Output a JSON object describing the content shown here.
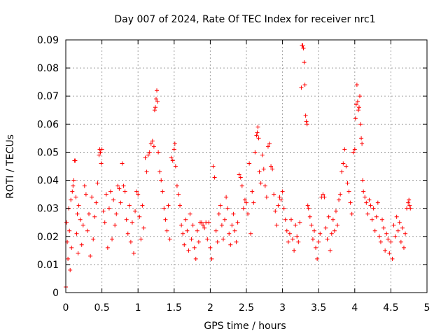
{
  "chart_data": {
    "type": "scatter",
    "title": "Day 007 of 2024, Rate Of TEC Index for receiver nrc1",
    "xlabel": "GPS time / hours",
    "ylabel": "ROTI / TECUs",
    "xlim": [
      0,
      5
    ],
    "ylim": [
      0,
      0.09
    ],
    "x_ticks": [
      0,
      0.5,
      1,
      1.5,
      2,
      2.5,
      3,
      3.5,
      4,
      4.5,
      5
    ],
    "x_tick_labels": [
      "0",
      "0.5",
      "1",
      "1.5",
      "2",
      "2.5",
      "3",
      "3.5",
      "4",
      "4.5",
      "5"
    ],
    "y_ticks": [
      0,
      0.01,
      0.02,
      0.03,
      0.04,
      0.05,
      0.06,
      0.07,
      0.08,
      0.09
    ],
    "y_tick_labels": [
      "0",
      "0.01",
      "0.02",
      "0.03",
      "0.04",
      "0.05",
      "0.06",
      "0.07",
      "0.08",
      "0.09"
    ],
    "grid": true,
    "marker": "+",
    "color": "#ff0000",
    "series": [
      {
        "name": "ROTI",
        "points": [
          [
            0.0,
            0.002
          ],
          [
            0.01,
            0.025
          ],
          [
            0.02,
            0.018
          ],
          [
            0.03,
            0.012
          ],
          [
            0.04,
            0.03
          ],
          [
            0.05,
            0.022
          ],
          [
            0.06,
            0.008
          ],
          [
            0.07,
            0.033
          ],
          [
            0.08,
            0.016
          ],
          [
            0.09,
            0.036
          ],
          [
            0.1,
            0.038
          ],
          [
            0.11,
            0.04
          ],
          [
            0.12,
            0.047
          ],
          [
            0.13,
            0.047
          ],
          [
            0.14,
            0.034
          ],
          [
            0.15,
            0.021
          ],
          [
            0.16,
            0.028
          ],
          [
            0.17,
            0.014
          ],
          [
            0.18,
            0.031
          ],
          [
            0.2,
            0.026
          ],
          [
            0.22,
            0.017
          ],
          [
            0.24,
            0.024
          ],
          [
            0.26,
            0.038
          ],
          [
            0.28,
            0.035
          ],
          [
            0.3,
            0.022
          ],
          [
            0.32,
            0.028
          ],
          [
            0.34,
            0.013
          ],
          [
            0.36,
            0.034
          ],
          [
            0.38,
            0.019
          ],
          [
            0.4,
            0.027
          ],
          [
            0.42,
            0.032
          ],
          [
            0.44,
            0.039
          ],
          [
            0.46,
            0.049
          ],
          [
            0.47,
            0.051
          ],
          [
            0.48,
            0.05
          ],
          [
            0.49,
            0.046
          ],
          [
            0.5,
            0.051
          ],
          [
            0.52,
            0.029
          ],
          [
            0.54,
            0.025
          ],
          [
            0.56,
            0.035
          ],
          [
            0.58,
            0.016
          ],
          [
            0.6,
            0.03
          ],
          [
            0.62,
            0.036
          ],
          [
            0.64,
            0.019
          ],
          [
            0.66,
            0.033
          ],
          [
            0.68,
            0.024
          ],
          [
            0.7,
            0.028
          ],
          [
            0.72,
            0.038
          ],
          [
            0.74,
            0.037
          ],
          [
            0.76,
            0.032
          ],
          [
            0.78,
            0.046
          ],
          [
            0.8,
            0.038
          ],
          [
            0.82,
            0.036
          ],
          [
            0.84,
            0.026
          ],
          [
            0.86,
            0.021
          ],
          [
            0.88,
            0.031
          ],
          [
            0.9,
            0.018
          ],
          [
            0.92,
            0.025
          ],
          [
            0.94,
            0.014
          ],
          [
            0.96,
            0.029
          ],
          [
            0.98,
            0.036
          ],
          [
            1.0,
            0.035
          ],
          [
            1.02,
            0.027
          ],
          [
            1.04,
            0.019
          ],
          [
            1.06,
            0.031
          ],
          [
            1.08,
            0.023
          ],
          [
            1.1,
            0.048
          ],
          [
            1.12,
            0.043
          ],
          [
            1.14,
            0.049
          ],
          [
            1.16,
            0.05
          ],
          [
            1.18,
            0.053
          ],
          [
            1.2,
            0.054
          ],
          [
            1.22,
            0.052
          ],
          [
            1.23,
            0.065
          ],
          [
            1.24,
            0.066
          ],
          [
            1.25,
            0.069
          ],
          [
            1.26,
            0.072
          ],
          [
            1.27,
            0.068
          ],
          [
            1.28,
            0.05
          ],
          [
            1.3,
            0.043
          ],
          [
            1.32,
            0.04
          ],
          [
            1.34,
            0.036
          ],
          [
            1.36,
            0.03
          ],
          [
            1.38,
            0.026
          ],
          [
            1.4,
            0.022
          ],
          [
            1.42,
            0.031
          ],
          [
            1.44,
            0.019
          ],
          [
            1.46,
            0.048
          ],
          [
            1.48,
            0.047
          ],
          [
            1.5,
            0.051
          ],
          [
            1.51,
            0.053
          ],
          [
            1.52,
            0.045
          ],
          [
            1.54,
            0.038
          ],
          [
            1.56,
            0.035
          ],
          [
            1.58,
            0.031
          ],
          [
            1.6,
            0.024
          ],
          [
            1.62,
            0.021
          ],
          [
            1.64,
            0.017
          ],
          [
            1.66,
            0.026
          ],
          [
            1.68,
            0.022
          ],
          [
            1.7,
            0.015
          ],
          [
            1.72,
            0.028
          ],
          [
            1.74,
            0.019
          ],
          [
            1.76,
            0.024
          ],
          [
            1.78,
            0.016
          ],
          [
            1.8,
            0.012
          ],
          [
            1.82,
            0.022
          ],
          [
            1.84,
            0.018
          ],
          [
            1.86,
            0.025
          ],
          [
            1.88,
            0.025
          ],
          [
            1.9,
            0.024
          ],
          [
            1.92,
            0.023
          ],
          [
            1.94,
            0.025
          ],
          [
            1.96,
            0.019
          ],
          [
            1.98,
            0.025
          ],
          [
            2.0,
            0.016
          ],
          [
            2.02,
            0.012
          ],
          [
            2.04,
            0.045
          ],
          [
            2.06,
            0.041
          ],
          [
            2.08,
            0.022
          ],
          [
            2.1,
            0.018
          ],
          [
            2.12,
            0.028
          ],
          [
            2.14,
            0.031
          ],
          [
            2.16,
            0.024
          ],
          [
            2.18,
            0.019
          ],
          [
            2.2,
            0.026
          ],
          [
            2.22,
            0.034
          ],
          [
            2.24,
            0.03
          ],
          [
            2.26,
            0.021
          ],
          [
            2.28,
            0.017
          ],
          [
            2.3,
            0.024
          ],
          [
            2.32,
            0.028
          ],
          [
            2.34,
            0.022
          ],
          [
            2.36,
            0.018
          ],
          [
            2.38,
            0.025
          ],
          [
            2.4,
            0.042
          ],
          [
            2.42,
            0.041
          ],
          [
            2.44,
            0.038
          ],
          [
            2.46,
            0.03
          ],
          [
            2.48,
            0.033
          ],
          [
            2.5,
            0.032
          ],
          [
            2.52,
            0.028
          ],
          [
            2.54,
            0.046
          ],
          [
            2.56,
            0.021
          ],
          [
            2.58,
            0.036
          ],
          [
            2.6,
            0.032
          ],
          [
            2.62,
            0.05
          ],
          [
            2.64,
            0.056
          ],
          [
            2.65,
            0.057
          ],
          [
            2.66,
            0.059
          ],
          [
            2.67,
            0.055
          ],
          [
            2.68,
            0.043
          ],
          [
            2.7,
            0.039
          ],
          [
            2.72,
            0.049
          ],
          [
            2.74,
            0.044
          ],
          [
            2.76,
            0.038
          ],
          [
            2.78,
            0.034
          ],
          [
            2.8,
            0.052
          ],
          [
            2.82,
            0.053
          ],
          [
            2.84,
            0.045
          ],
          [
            2.86,
            0.044
          ],
          [
            2.88,
            0.035
          ],
          [
            2.9,
            0.029
          ],
          [
            2.92,
            0.024
          ],
          [
            2.94,
            0.031
          ],
          [
            2.96,
            0.034
          ],
          [
            2.98,
            0.033
          ],
          [
            3.0,
            0.036
          ],
          [
            3.02,
            0.03
          ],
          [
            3.04,
            0.026
          ],
          [
            3.06,
            0.022
          ],
          [
            3.08,
            0.018
          ],
          [
            3.1,
            0.021
          ],
          [
            3.12,
            0.026
          ],
          [
            3.14,
            0.019
          ],
          [
            3.16,
            0.015
          ],
          [
            3.18,
            0.024
          ],
          [
            3.2,
            0.02
          ],
          [
            3.22,
            0.018
          ],
          [
            3.24,
            0.025
          ],
          [
            3.26,
            0.073
          ],
          [
            3.27,
            0.088
          ],
          [
            3.28,
            0.088
          ],
          [
            3.29,
            0.087
          ],
          [
            3.3,
            0.082
          ],
          [
            3.31,
            0.074
          ],
          [
            3.32,
            0.063
          ],
          [
            3.33,
            0.061
          ],
          [
            3.34,
            0.06
          ],
          [
            3.35,
            0.031
          ],
          [
            3.36,
            0.03
          ],
          [
            3.38,
            0.027
          ],
          [
            3.4,
            0.024
          ],
          [
            3.42,
            0.019
          ],
          [
            3.44,
            0.022
          ],
          [
            3.46,
            0.016
          ],
          [
            3.48,
            0.012
          ],
          [
            3.5,
            0.018
          ],
          [
            3.52,
            0.021
          ],
          [
            3.54,
            0.034
          ],
          [
            3.56,
            0.035
          ],
          [
            3.58,
            0.034
          ],
          [
            3.6,
            0.023
          ],
          [
            3.62,
            0.019
          ],
          [
            3.64,
            0.027
          ],
          [
            3.66,
            0.015
          ],
          [
            3.68,
            0.021
          ],
          [
            3.7,
            0.026
          ],
          [
            3.72,
            0.022
          ],
          [
            3.74,
            0.029
          ],
          [
            3.76,
            0.024
          ],
          [
            3.78,
            0.033
          ],
          [
            3.8,
            0.035
          ],
          [
            3.82,
            0.043
          ],
          [
            3.84,
            0.046
          ],
          [
            3.86,
            0.051
          ],
          [
            3.88,
            0.045
          ],
          [
            3.9,
            0.039
          ],
          [
            3.92,
            0.036
          ],
          [
            3.94,
            0.032
          ],
          [
            3.96,
            0.028
          ],
          [
            3.98,
            0.05
          ],
          [
            4.0,
            0.051
          ],
          [
            4.01,
            0.062
          ],
          [
            4.02,
            0.067
          ],
          [
            4.03,
            0.074
          ],
          [
            4.04,
            0.068
          ],
          [
            4.05,
            0.065
          ],
          [
            4.06,
            0.066
          ],
          [
            4.07,
            0.07
          ],
          [
            4.08,
            0.06
          ],
          [
            4.09,
            0.055
          ],
          [
            4.1,
            0.053
          ],
          [
            4.11,
            0.04
          ],
          [
            4.12,
            0.036
          ],
          [
            4.14,
            0.034
          ],
          [
            4.16,
            0.032
          ],
          [
            4.18,
            0.028
          ],
          [
            4.2,
            0.033
          ],
          [
            4.22,
            0.031
          ],
          [
            4.24,
            0.026
          ],
          [
            4.26,
            0.03
          ],
          [
            4.28,
            0.022
          ],
          [
            4.3,
            0.027
          ],
          [
            4.32,
            0.032
          ],
          [
            4.34,
            0.02
          ],
          [
            4.36,
            0.018
          ],
          [
            4.38,
            0.026
          ],
          [
            4.4,
            0.023
          ],
          [
            4.42,
            0.015
          ],
          [
            4.44,
            0.021
          ],
          [
            4.46,
            0.019
          ],
          [
            4.48,
            0.014
          ],
          [
            4.5,
            0.018
          ],
          [
            4.52,
            0.012
          ],
          [
            4.54,
            0.024
          ],
          [
            4.56,
            0.02
          ],
          [
            4.58,
            0.027
          ],
          [
            4.6,
            0.022
          ],
          [
            4.62,
            0.025
          ],
          [
            4.64,
            0.018
          ],
          [
            4.66,
            0.023
          ],
          [
            4.68,
            0.016
          ],
          [
            4.7,
            0.021
          ],
          [
            4.72,
            0.03
          ],
          [
            4.74,
            0.032
          ],
          [
            4.75,
            0.033
          ],
          [
            4.76,
            0.031
          ],
          [
            4.77,
            0.03
          ]
        ]
      }
    ]
  }
}
